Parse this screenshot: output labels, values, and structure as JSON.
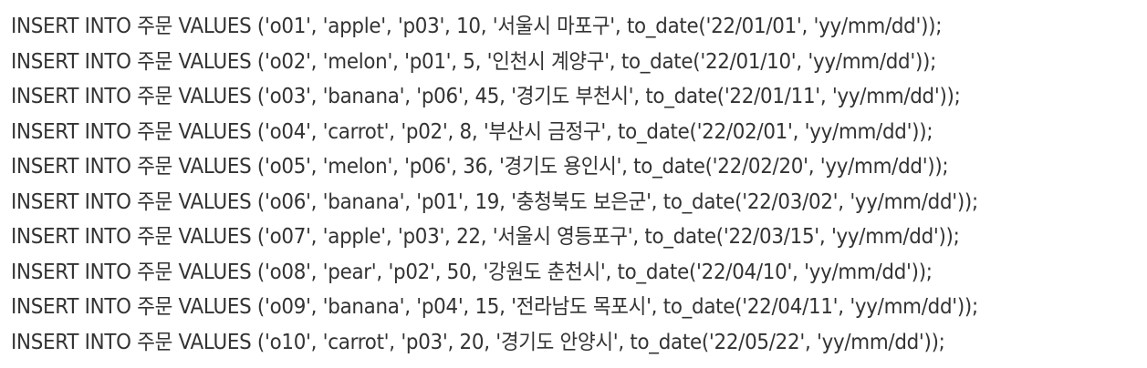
{
  "document": {
    "lines": [
      "INSERT INTO 주문 VALUES ('o01', 'apple', 'p03', 10, '서울시 마포구', to_date('22/01/01', 'yy/mm/dd'));",
      "INSERT INTO 주문 VALUES ('o02', 'melon', 'p01', 5, '인천시 계양구', to_date('22/01/10', 'yy/mm/dd'));",
      "INSERT INTO 주문 VALUES ('o03', 'banana', 'p06', 45, '경기도 부천시', to_date('22/01/11', 'yy/mm/dd'));",
      "INSERT INTO 주문 VALUES ('o04', 'carrot', 'p02', 8, '부산시 금정구', to_date('22/02/01', 'yy/mm/dd'));",
      "INSERT INTO 주문 VALUES ('o05', 'melon', 'p06', 36, '경기도 용인시', to_date('22/02/20', 'yy/mm/dd'));",
      "INSERT INTO 주문 VALUES ('o06', 'banana', 'p01', 19, '충청북도 보은군', to_date('22/03/02', 'yy/mm/dd'));",
      "INSERT INTO 주문 VALUES ('o07', 'apple', 'p03', 22, '서울시 영등포구', to_date('22/03/15', 'yy/mm/dd'));",
      "INSERT INTO 주문 VALUES ('o08', 'pear', 'p02', 50, '강원도 춘천시', to_date('22/04/10', 'yy/mm/dd'));",
      "INSERT INTO 주문 VALUES ('o09', 'banana', 'p04', 15, '전라남도 목포시', to_date('22/04/11', 'yy/mm/dd'));",
      "INSERT INTO 주문 VALUES ('o10', 'carrot', 'p03', 20, '경기도 안양시', to_date('22/05/22', 'yy/mm/dd'));"
    ]
  }
}
